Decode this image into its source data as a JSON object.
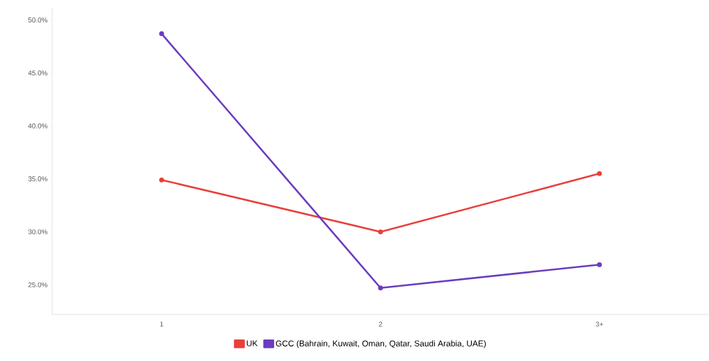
{
  "chart_data": {
    "type": "line",
    "categories": [
      "1",
      "2",
      "3+"
    ],
    "series": [
      {
        "name": "UK",
        "color": "#e8403a",
        "values": [
          34.9,
          30.0,
          35.5
        ]
      },
      {
        "name": "GCC (Bahrain, Kuwait, Oman, Qatar, Saudi Arabia, UAE)",
        "color": "#6a3dbf",
        "values": [
          48.7,
          24.7,
          26.9
        ]
      }
    ],
    "ylim": [
      22.2,
      51.1
    ],
    "yticks": [
      {
        "value": 25,
        "label": "25.0%"
      },
      {
        "value": 30,
        "label": "30.0%"
      },
      {
        "value": 35,
        "label": "35.0%"
      },
      {
        "value": 40,
        "label": "40.0%"
      },
      {
        "value": 45,
        "label": "45.0%"
      },
      {
        "value": 50,
        "label": "50.0%"
      }
    ],
    "grid": false,
    "legend": "bottom",
    "marker": "circle",
    "line_style": "solid"
  }
}
